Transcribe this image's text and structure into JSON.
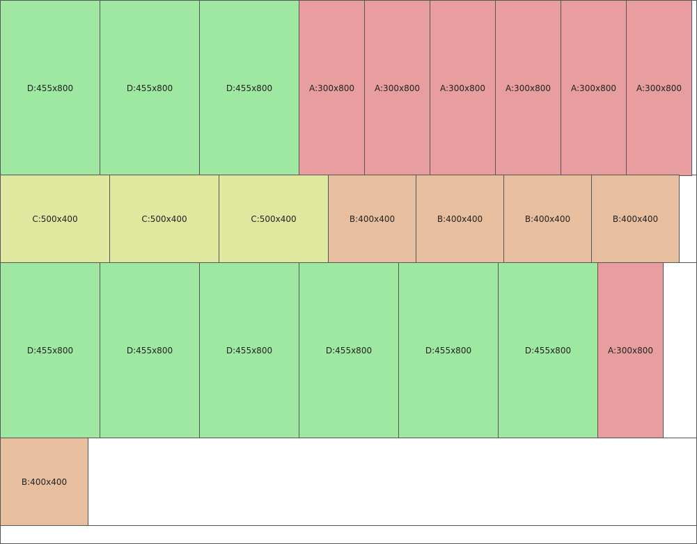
{
  "colors": {
    "A": "#e89e9e",
    "B": "#e8bf9e",
    "C": "#dee89e",
    "D": "#9ee8a1"
  },
  "rows": [
    {
      "items": [
        {
          "type": "D",
          "label": "D:455x800"
        },
        {
          "type": "D",
          "label": "D:455x800"
        },
        {
          "type": "D",
          "label": "D:455x800"
        },
        {
          "type": "A",
          "label": "A:300x800"
        },
        {
          "type": "A",
          "label": "A:300x800"
        },
        {
          "type": "A",
          "label": "A:300x800"
        },
        {
          "type": "A",
          "label": "A:300x800"
        },
        {
          "type": "A",
          "label": "A:300x800"
        },
        {
          "type": "A",
          "label": "A:300x800"
        }
      ]
    },
    {
      "items": [
        {
          "type": "C",
          "label": "C:500x400"
        },
        {
          "type": "C",
          "label": "C:500x400"
        },
        {
          "type": "C",
          "label": "C:500x400"
        },
        {
          "type": "B",
          "label": "B:400x400"
        },
        {
          "type": "B",
          "label": "B:400x400"
        },
        {
          "type": "B",
          "label": "B:400x400"
        },
        {
          "type": "B",
          "label": "B:400x400"
        }
      ]
    },
    {
      "items": [
        {
          "type": "D",
          "label": "D:455x800"
        },
        {
          "type": "D",
          "label": "D:455x800"
        },
        {
          "type": "D",
          "label": "D:455x800"
        },
        {
          "type": "D",
          "label": "D:455x800"
        },
        {
          "type": "D",
          "label": "D:455x800"
        },
        {
          "type": "D",
          "label": "D:455x800"
        },
        {
          "type": "A",
          "label": "A:300x800"
        }
      ]
    },
    {
      "items": [
        {
          "type": "B",
          "label": "B:400x400"
        }
      ]
    }
  ]
}
